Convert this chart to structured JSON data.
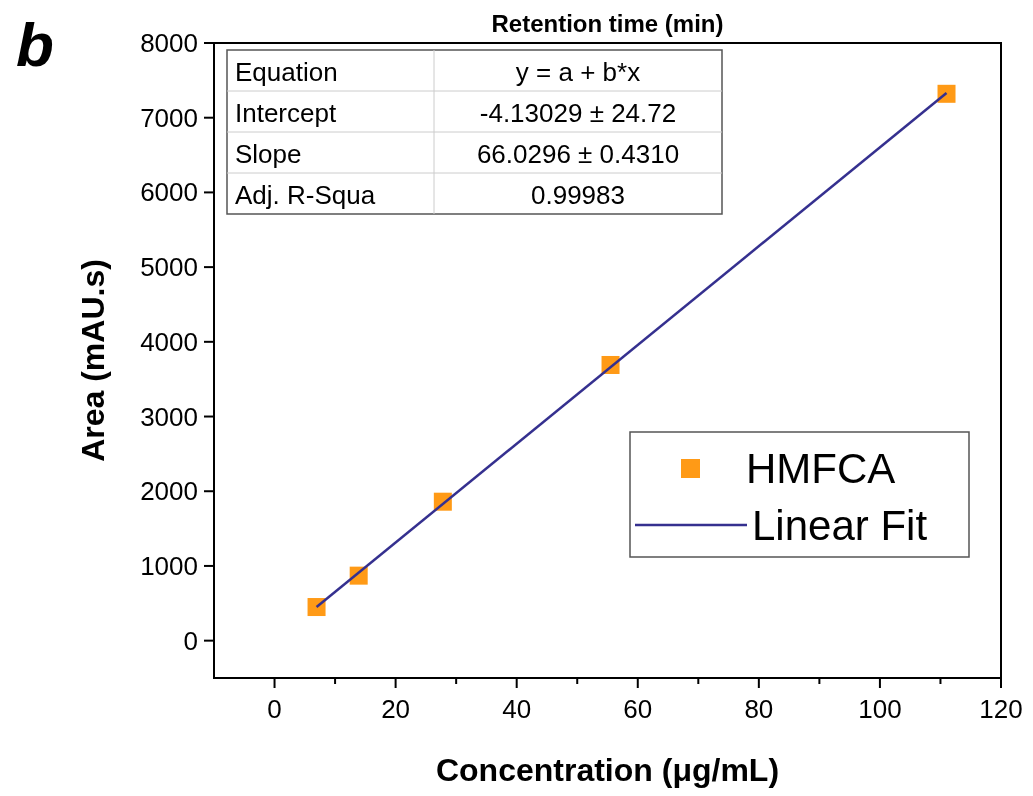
{
  "chart_data": {
    "type": "scatter",
    "xlabel": "Concentration (μg/mL)",
    "ylabel": "Area (mAU.s)",
    "annotations": [
      "b",
      "Retention time (min)",
      "Equation",
      "y = a + b*x",
      "Intercept",
      "-4.13029 ± 24.72",
      "Slope",
      "66.0296 ± 0.4310",
      "Adj. R-Squa",
      "0.99983"
    ],
    "x": [
      6.94,
      13.9,
      27.8,
      55.5,
      111
    ],
    "series": [
      {
        "name": "HMFCA",
        "color": "#ff9a16",
        "marker": "square",
        "values": [
          450,
          870,
          1860,
          3690,
          7320
        ]
      },
      {
        "name": "Linear Fit",
        "type": "line",
        "color": "#35308f",
        "line_style": "solid",
        "marker": "none",
        "x": [
          6.94,
          111
        ],
        "values": [
          450,
          7330
        ]
      }
    ],
    "xlim": [
      -10,
      120
    ],
    "ylim": [
      -500,
      8000
    ],
    "xticks": [
      0,
      {
        "value": 10,
        "label": null
      },
      20,
      {
        "value": 30,
        "label": null
      },
      40,
      {
        "value": 50,
        "label": null
      },
      60,
      {
        "value": 70,
        "label": null
      },
      80,
      {
        "value": 90,
        "label": null
      },
      100,
      {
        "value": 110,
        "label": null
      },
      120
    ],
    "yticks": [
      0,
      1000,
      2000,
      3000,
      4000,
      5000,
      6000,
      7000,
      8000
    ],
    "grid": false,
    "legend": "bottom right"
  }
}
